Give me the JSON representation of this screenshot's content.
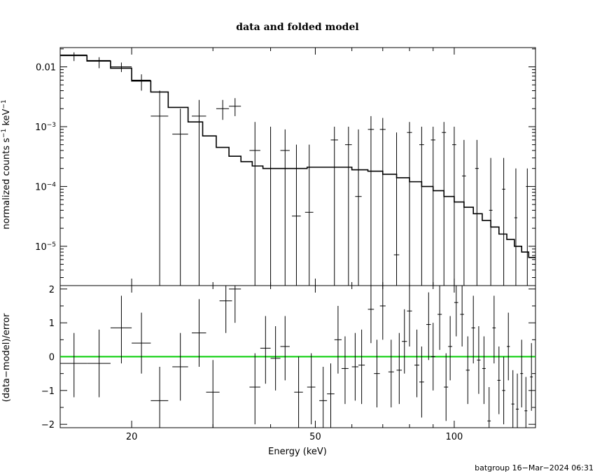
{
  "chart_data": [
    {
      "panel": "top",
      "type": "step+errorbars",
      "title": "data and folded model",
      "ylabel_html": "normalized counts s<tspan baseline-shift=\"super\" font-size=\"9\">−1</tspan> keV<tspan baseline-shift=\"super\" font-size=\"9\">−1</tspan>",
      "ylabel": "normalized counts s−1 keV−1",
      "xscale": "log",
      "yscale": "log",
      "xlim": [
        14,
        150
      ],
      "ylim": [
        2.2e-06,
        0.021
      ],
      "yticks": [
        {
          "v": 0.01,
          "label": "0.01",
          "base": "",
          "exp": ""
        },
        {
          "v": 0.001,
          "label": "",
          "base": "10",
          "exp": "−3"
        },
        {
          "v": 0.0001,
          "label": "",
          "base": "10",
          "exp": "−4"
        },
        {
          "v": 1e-05,
          "label": "",
          "base": "10",
          "exp": "−5"
        }
      ],
      "data": [
        {
          "x": 15.0,
          "xlo": 14.0,
          "xhi": 16.0,
          "y": 0.0158,
          "ylo": 0.0125,
          "yhi": 0.0175
        },
        {
          "x": 17.0,
          "xlo": 16.0,
          "xhi": 18.0,
          "y": 0.0128,
          "ylo": 0.0095,
          "yhi": 0.0145
        },
        {
          "x": 19.0,
          "xlo": 18.0,
          "xhi": 20.0,
          "y": 0.01,
          "ylo": 0.0082,
          "yhi": 0.0118
        },
        {
          "x": 21.0,
          "xlo": 20.0,
          "xhi": 22.0,
          "y": 0.006,
          "ylo": 0.004,
          "yhi": 0.0075
        },
        {
          "x": 23.0,
          "xlo": 22.0,
          "xhi": 24.0,
          "y": 0.0015,
          "ylo": null,
          "yhi": 0.004
        },
        {
          "x": 25.5,
          "xlo": 24.5,
          "xhi": 26.5,
          "y": 0.00075,
          "ylo": null,
          "yhi": 0.002
        },
        {
          "x": 28.0,
          "xlo": 27.0,
          "xhi": 29.0,
          "y": 0.0015,
          "ylo": null,
          "yhi": 0.0028
        },
        {
          "x": 31.5,
          "xlo": 30.5,
          "xhi": 32.5,
          "y": 0.002,
          "ylo": 0.0013,
          "yhi": 0.0028
        },
        {
          "x": 33.5,
          "xlo": 32.5,
          "xhi": 34.5,
          "y": 0.0022,
          "ylo": 0.0015,
          "yhi": 0.003
        },
        {
          "x": 37.0,
          "xlo": 36.0,
          "xhi": 38.0,
          "y": 0.0004,
          "ylo": null,
          "yhi": 0.0012
        },
        {
          "x": 40.0,
          "xlo": 39.0,
          "xhi": 41.0,
          "y": 0.0002,
          "ylo": null,
          "yhi": 0.001
        },
        {
          "x": 43.0,
          "xlo": 42.0,
          "xhi": 44.0,
          "y": 0.0004,
          "ylo": null,
          "yhi": 0.0009
        },
        {
          "x": 45.5,
          "xlo": 44.5,
          "xhi": 46.5,
          "y": 3.2e-05,
          "ylo": null,
          "yhi": 0.0005
        },
        {
          "x": 48.5,
          "xlo": 47.5,
          "xhi": 49.5,
          "y": 3.7e-05,
          "ylo": null,
          "yhi": 0.0005
        },
        {
          "x": 55.0,
          "xlo": 54.0,
          "xhi": 56.0,
          "y": 0.0006,
          "ylo": null,
          "yhi": 0.001
        },
        {
          "x": 59.0,
          "xlo": 58.0,
          "xhi": 60.0,
          "y": 0.0005,
          "ylo": null,
          "yhi": 0.001
        },
        {
          "x": 62.0,
          "xlo": 61.0,
          "xhi": 63.0,
          "y": 6.8e-05,
          "ylo": null,
          "yhi": 0.0009
        },
        {
          "x": 66.0,
          "xlo": 65.0,
          "xhi": 67.0,
          "y": 0.0009,
          "ylo": null,
          "yhi": 0.0015
        },
        {
          "x": 70.0,
          "xlo": 69.0,
          "xhi": 71.0,
          "y": 0.0009,
          "ylo": null,
          "yhi": 0.0014
        },
        {
          "x": 75.0,
          "xlo": 74.0,
          "xhi": 76.0,
          "y": 7.2e-06,
          "ylo": null,
          "yhi": 0.0008
        },
        {
          "x": 80.0,
          "xlo": 79.0,
          "xhi": 81.0,
          "y": 0.0008,
          "ylo": null,
          "yhi": 0.0012
        },
        {
          "x": 85.0,
          "xlo": 84.0,
          "xhi": 86.0,
          "y": 0.0005,
          "ylo": null,
          "yhi": 0.001
        },
        {
          "x": 90.0,
          "xlo": 89.0,
          "xhi": 91.0,
          "y": 0.0006,
          "ylo": null,
          "yhi": 0.001
        },
        {
          "x": 95.0,
          "xlo": 94.0,
          "xhi": 96.0,
          "y": 0.0008,
          "ylo": null,
          "yhi": 0.0012
        },
        {
          "x": 100.0,
          "xlo": 99.0,
          "xhi": 101.0,
          "y": 0.0005,
          "ylo": null,
          "yhi": 0.001
        },
        {
          "x": 105.0,
          "xlo": 104.0,
          "xhi": 106.0,
          "y": 0.00015,
          "ylo": null,
          "yhi": 0.0006
        },
        {
          "x": 112.0,
          "xlo": 111.0,
          "xhi": 113.0,
          "y": 0.0002,
          "ylo": null,
          "yhi": 0.0006
        },
        {
          "x": 120.0,
          "xlo": 119.0,
          "xhi": 121.0,
          "y": 4e-05,
          "ylo": null,
          "yhi": 0.0003
        },
        {
          "x": 128.0,
          "xlo": 127.0,
          "xhi": 129.0,
          "y": 9e-05,
          "ylo": null,
          "yhi": 0.0003
        },
        {
          "x": 136.0,
          "xlo": 135.0,
          "xhi": 137.0,
          "y": 3e-05,
          "ylo": null,
          "yhi": 0.0002
        },
        {
          "x": 144.0,
          "xlo": 143.0,
          "xhi": 145.0,
          "y": 0.0001,
          "ylo": null,
          "yhi": 0.0002
        }
      ],
      "model": [
        [
          14,
          0.0155
        ],
        [
          16,
          0.0125
        ],
        [
          18,
          0.0095
        ],
        [
          20,
          0.0058
        ],
        [
          22,
          0.0038
        ],
        [
          24,
          0.0021
        ],
        [
          26.5,
          0.0012
        ],
        [
          28.5,
          0.0007
        ],
        [
          30.5,
          0.00045
        ],
        [
          32.5,
          0.00032
        ],
        [
          34.5,
          0.00026
        ],
        [
          36.5,
          0.00022
        ],
        [
          38.5,
          0.0002
        ],
        [
          42,
          0.0002
        ],
        [
          48,
          0.00021
        ],
        [
          55,
          0.00021
        ],
        [
          60,
          0.00019
        ],
        [
          65,
          0.00018
        ],
        [
          70,
          0.00016
        ],
        [
          75,
          0.00014
        ],
        [
          80,
          0.00012
        ],
        [
          85,
          0.0001
        ],
        [
          90,
          8.5e-05
        ],
        [
          95,
          6.8e-05
        ],
        [
          100,
          5.5e-05
        ],
        [
          105,
          4.5e-05
        ],
        [
          110,
          3.5e-05
        ],
        [
          115,
          2.7e-05
        ],
        [
          120,
          2.1e-05
        ],
        [
          125,
          1.6e-05
        ],
        [
          130,
          1.3e-05
        ],
        [
          135,
          1e-05
        ],
        [
          140,
          8e-06
        ],
        [
          145,
          6.5e-06
        ],
        [
          150,
          6.5e-06
        ]
      ]
    },
    {
      "panel": "bottom",
      "type": "errorbars",
      "ylabel": "(data−model)/error",
      "xlabel": "Energy (keV)",
      "xscale": "log",
      "xlim": [
        14,
        150
      ],
      "ylim": [
        -2.1,
        2.1
      ],
      "yticks": [
        -2,
        -1,
        0,
        1,
        2
      ],
      "ytick_labels": [
        "−2",
        "−1",
        "0",
        "1",
        "2"
      ],
      "xticks": [
        20,
        50,
        100
      ],
      "xtick_labels": [
        "20",
        "50",
        "100"
      ],
      "zero_line_color": "#00cc00",
      "data": [
        {
          "x": 15.0,
          "xlo": 14.0,
          "xhi": 16.0,
          "y": -0.2,
          "ylo": -1.2,
          "yhi": 0.7
        },
        {
          "x": 17.0,
          "xlo": 16.0,
          "xhi": 18.0,
          "y": -0.2,
          "ylo": -1.2,
          "yhi": 0.8
        },
        {
          "x": 19.0,
          "xlo": 18.0,
          "xhi": 20.0,
          "y": 0.85,
          "ylo": -0.2,
          "yhi": 1.8
        },
        {
          "x": 21.0,
          "xlo": 20.0,
          "xhi": 22.0,
          "y": 0.4,
          "ylo": -0.5,
          "yhi": 1.3
        },
        {
          "x": 23.0,
          "xlo": 22.0,
          "xhi": 24.0,
          "y": -1.3,
          "ylo": -2.1,
          "yhi": -0.3
        },
        {
          "x": 25.5,
          "xlo": 24.5,
          "xhi": 26.5,
          "y": -0.3,
          "ylo": -1.3,
          "yhi": 0.7
        },
        {
          "x": 28.0,
          "xlo": 27.0,
          "xhi": 29.0,
          "y": 0.7,
          "ylo": -0.3,
          "yhi": 1.7
        },
        {
          "x": 30.0,
          "xlo": 29.0,
          "xhi": 31.0,
          "y": -1.05,
          "ylo": -2.1,
          "yhi": -0.1
        },
        {
          "x": 32.0,
          "xlo": 31.0,
          "xhi": 33.0,
          "y": 1.65,
          "ylo": 0.7,
          "yhi": 2.1
        },
        {
          "x": 33.5,
          "xlo": 32.5,
          "xhi": 34.5,
          "y": 2.0,
          "ylo": 1.0,
          "yhi": 2.1
        },
        {
          "x": 37.0,
          "xlo": 36.0,
          "xhi": 38.0,
          "y": -0.9,
          "ylo": -2.0,
          "yhi": 0.1
        },
        {
          "x": 39.0,
          "xlo": 38.0,
          "xhi": 40.0,
          "y": 0.25,
          "ylo": -0.8,
          "yhi": 1.2
        },
        {
          "x": 41.0,
          "xlo": 40.0,
          "xhi": 42.0,
          "y": -0.05,
          "ylo": -1.0,
          "yhi": 0.9
        },
        {
          "x": 43.0,
          "xlo": 42.0,
          "xhi": 44.0,
          "y": 0.3,
          "ylo": -0.7,
          "yhi": 1.2
        },
        {
          "x": 46.0,
          "xlo": 45.0,
          "xhi": 47.0,
          "y": -1.05,
          "ylo": -2.1,
          "yhi": 0.0
        },
        {
          "x": 49.0,
          "xlo": 48.0,
          "xhi": 50.0,
          "y": -0.9,
          "ylo": -2.0,
          "yhi": 0.1
        },
        {
          "x": 52.0,
          "xlo": 51.0,
          "xhi": 53.0,
          "y": -1.3,
          "ylo": -2.1,
          "yhi": -0.3
        },
        {
          "x": 54.0,
          "xlo": 53.0,
          "xhi": 55.0,
          "y": -1.1,
          "ylo": -2.1,
          "yhi": -0.2
        },
        {
          "x": 56.0,
          "xlo": 55.0,
          "xhi": 57.0,
          "y": 0.5,
          "ylo": -0.5,
          "yhi": 1.5
        },
        {
          "x": 58.0,
          "xlo": 57.0,
          "xhi": 59.0,
          "y": -0.35,
          "ylo": -1.4,
          "yhi": 0.6
        },
        {
          "x": 61.0,
          "xlo": 60.0,
          "xhi": 62.0,
          "y": -0.3,
          "ylo": -1.3,
          "yhi": 0.7
        },
        {
          "x": 63.0,
          "xlo": 62.0,
          "xhi": 64.0,
          "y": -0.25,
          "ylo": -1.4,
          "yhi": 0.8
        },
        {
          "x": 66.0,
          "xlo": 65.0,
          "xhi": 67.0,
          "y": 1.4,
          "ylo": 0.4,
          "yhi": 2.1
        },
        {
          "x": 68.0,
          "xlo": 67.0,
          "xhi": 69.0,
          "y": -0.5,
          "ylo": -1.5,
          "yhi": 0.5
        },
        {
          "x": 70.0,
          "xlo": 69.0,
          "xhi": 71.0,
          "y": 1.5,
          "ylo": 0.5,
          "yhi": 2.1
        },
        {
          "x": 73.0,
          "xlo": 72.0,
          "xhi": 74.0,
          "y": -0.45,
          "ylo": -1.5,
          "yhi": 0.5
        },
        {
          "x": 76.0,
          "xlo": 75.0,
          "xhi": 77.0,
          "y": -0.4,
          "ylo": -1.4,
          "yhi": 0.7
        },
        {
          "x": 78.0,
          "xlo": 77.0,
          "xhi": 79.0,
          "y": 0.45,
          "ylo": -0.5,
          "yhi": 1.4
        },
        {
          "x": 80.0,
          "xlo": 79.0,
          "xhi": 81.0,
          "y": 1.35,
          "ylo": 0.3,
          "yhi": 2.1
        },
        {
          "x": 83.0,
          "xlo": 82.0,
          "xhi": 84.0,
          "y": -0.25,
          "ylo": -1.2,
          "yhi": 0.8
        },
        {
          "x": 85.0,
          "xlo": 84.0,
          "xhi": 86.0,
          "y": -0.75,
          "ylo": -1.8,
          "yhi": 0.3
        },
        {
          "x": 88.0,
          "xlo": 87.0,
          "xhi": 89.0,
          "y": 0.95,
          "ylo": -0.1,
          "yhi": 1.9
        },
        {
          "x": 90.0,
          "xlo": 89.0,
          "xhi": 91.0,
          "y": 0.0,
          "ylo": -1.0,
          "yhi": 1.0
        },
        {
          "x": 93.0,
          "xlo": 92.0,
          "xhi": 94.0,
          "y": 1.25,
          "ylo": 0.2,
          "yhi": 2.1
        },
        {
          "x": 96.0,
          "xlo": 95.0,
          "xhi": 97.0,
          "y": -0.9,
          "ylo": -1.9,
          "yhi": 0.1
        },
        {
          "x": 98.0,
          "xlo": 97.0,
          "xhi": 99.0,
          "y": 0.3,
          "ylo": -0.7,
          "yhi": 1.2
        },
        {
          "x": 101.0,
          "xlo": 100.0,
          "xhi": 102.0,
          "y": 1.6,
          "ylo": 0.6,
          "yhi": 2.1
        },
        {
          "x": 104.0,
          "xlo": 103.0,
          "xhi": 105.0,
          "y": 1.25,
          "ylo": 0.3,
          "yhi": 2.1
        },
        {
          "x": 107.0,
          "xlo": 106.0,
          "xhi": 108.0,
          "y": -0.4,
          "ylo": -1.4,
          "yhi": 0.6
        },
        {
          "x": 110.0,
          "xlo": 109.0,
          "xhi": 111.0,
          "y": 0.85,
          "ylo": -0.2,
          "yhi": 1.8
        },
        {
          "x": 113.0,
          "xlo": 112.0,
          "xhi": 114.0,
          "y": -0.1,
          "ylo": -1.1,
          "yhi": 0.9
        },
        {
          "x": 116.0,
          "xlo": 115.0,
          "xhi": 117.0,
          "y": -0.35,
          "ylo": -1.4,
          "yhi": 0.6
        },
        {
          "x": 119.0,
          "xlo": 118.0,
          "xhi": 120.0,
          "y": -1.9,
          "ylo": -2.1,
          "yhi": -0.9
        },
        {
          "x": 122.0,
          "xlo": 121.0,
          "xhi": 123.0,
          "y": 0.85,
          "ylo": -0.2,
          "yhi": 1.8
        },
        {
          "x": 125.0,
          "xlo": 124.0,
          "xhi": 126.0,
          "y": -0.7,
          "ylo": -1.7,
          "yhi": 0.3
        },
        {
          "x": 128.0,
          "xlo": 127.0,
          "xhi": 129.0,
          "y": -1.0,
          "ylo": -2.0,
          "yhi": 0.0
        },
        {
          "x": 131.0,
          "xlo": 130.0,
          "xhi": 132.0,
          "y": 0.3,
          "ylo": -0.7,
          "yhi": 1.3
        },
        {
          "x": 134.0,
          "xlo": 133.0,
          "xhi": 135.0,
          "y": -1.4,
          "ylo": -2.1,
          "yhi": -0.4
        },
        {
          "x": 137.0,
          "xlo": 136.0,
          "xhi": 138.0,
          "y": -1.55,
          "ylo": -2.1,
          "yhi": -0.5
        },
        {
          "x": 140.0,
          "xlo": 139.0,
          "xhi": 141.0,
          "y": -0.5,
          "ylo": -1.5,
          "yhi": 0.5
        },
        {
          "x": 143.0,
          "xlo": 142.0,
          "xhi": 144.0,
          "y": -1.6,
          "ylo": -2.1,
          "yhi": -0.6
        },
        {
          "x": 147.0,
          "xlo": 146.0,
          "xhi": 148.0,
          "y": -0.6,
          "ylo": -1.6,
          "yhi": 0.4
        }
      ]
    }
  ],
  "footer": "batgroup 16−Mar−2024 06:31"
}
